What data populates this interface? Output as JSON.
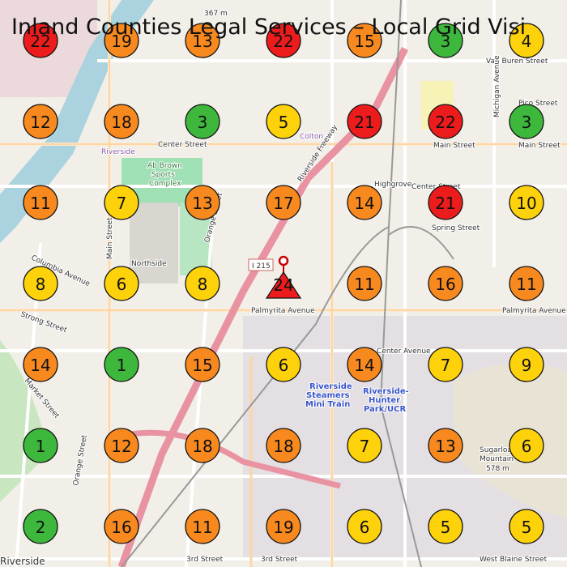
{
  "title": "Inland Counties Legal Services – Local Grid Visi",
  "grid": {
    "rows": [
      [
        {
          "rank": 22,
          "color": "#ec1c1c"
        },
        {
          "rank": 19,
          "color": "#f7891f"
        },
        {
          "rank": 13,
          "color": "#f7891f"
        },
        {
          "rank": 22,
          "color": "#ec1c1c"
        },
        {
          "rank": 15,
          "color": "#f7891f"
        },
        {
          "rank": 3,
          "color": "#3db83d"
        },
        {
          "rank": 4,
          "color": "#fdd20a"
        }
      ],
      [
        {
          "rank": 12,
          "color": "#f7891f"
        },
        {
          "rank": 18,
          "color": "#f7891f"
        },
        {
          "rank": 3,
          "color": "#3db83d"
        },
        {
          "rank": 5,
          "color": "#fdd20a"
        },
        {
          "rank": 21,
          "color": "#ec1c1c"
        },
        {
          "rank": 22,
          "color": "#ec1c1c"
        },
        {
          "rank": 3,
          "color": "#3db83d"
        }
      ],
      [
        {
          "rank": 11,
          "color": "#f7891f"
        },
        {
          "rank": 7,
          "color": "#fdd20a"
        },
        {
          "rank": 13,
          "color": "#f7891f"
        },
        {
          "rank": 17,
          "color": "#f7891f"
        },
        {
          "rank": 14,
          "color": "#f7891f"
        },
        {
          "rank": 21,
          "color": "#ec1c1c"
        },
        {
          "rank": 10,
          "color": "#fdd20a"
        }
      ],
      [
        {
          "rank": 8,
          "color": "#fdd20a"
        },
        {
          "rank": 6,
          "color": "#fdd20a"
        },
        {
          "rank": 8,
          "color": "#fdd20a"
        },
        {
          "rank": 24,
          "color": "#ec1c1c",
          "marker": "triangle"
        },
        {
          "rank": 11,
          "color": "#f7891f"
        },
        {
          "rank": 16,
          "color": "#f7891f"
        },
        {
          "rank": 11,
          "color": "#f7891f"
        }
      ],
      [
        {
          "rank": 14,
          "color": "#f7891f"
        },
        {
          "rank": 1,
          "color": "#3db83d"
        },
        {
          "rank": 15,
          "color": "#f7891f"
        },
        {
          "rank": 6,
          "color": "#fdd20a"
        },
        {
          "rank": 14,
          "color": "#f7891f"
        },
        {
          "rank": 7,
          "color": "#fdd20a"
        },
        {
          "rank": 9,
          "color": "#fdd20a"
        }
      ],
      [
        {
          "rank": 1,
          "color": "#3db83d"
        },
        {
          "rank": 12,
          "color": "#f7891f"
        },
        {
          "rank": 18,
          "color": "#f7891f"
        },
        {
          "rank": 18,
          "color": "#f7891f"
        },
        {
          "rank": 7,
          "color": "#fdd20a"
        },
        {
          "rank": 13,
          "color": "#f7891f"
        },
        {
          "rank": 6,
          "color": "#fdd20a"
        }
      ],
      [
        {
          "rank": 2,
          "color": "#3db83d"
        },
        {
          "rank": 16,
          "color": "#f7891f"
        },
        {
          "rank": 11,
          "color": "#f7891f"
        },
        {
          "rank": 19,
          "color": "#f7891f"
        },
        {
          "rank": 6,
          "color": "#fdd20a"
        },
        {
          "rank": 5,
          "color": "#fdd20a"
        },
        {
          "rank": 5,
          "color": "#fdd20a"
        }
      ]
    ]
  },
  "map_labels": [
    "367 m",
    "Van Buren Street",
    "Pico Street",
    "Michigan Avenue",
    "Colton",
    "Center Street",
    "Main Street",
    "Main Street",
    "Riverside",
    "Ab Brown",
    "Sports",
    "Complex",
    "Riverside Freeway",
    "Highgrove",
    "Center Street",
    "Spring Street",
    "Northside",
    "Columbia Avenue",
    "Main Street",
    "Orange Street",
    "I 215",
    "Palmyrita Avenue",
    "Palmyrita Avenue",
    "Strong Street",
    "Center Avenue",
    "Riverside",
    "Steamers",
    "Mini Train",
    "Riverside-",
    "Hunter",
    "Park/UCR",
    "Market Street",
    "Sugarloaf",
    "Mountain",
    "578 m",
    "3rd Street",
    "3rd Street",
    "West Blaine Street",
    "Riverside",
    "Orange Street"
  ]
}
